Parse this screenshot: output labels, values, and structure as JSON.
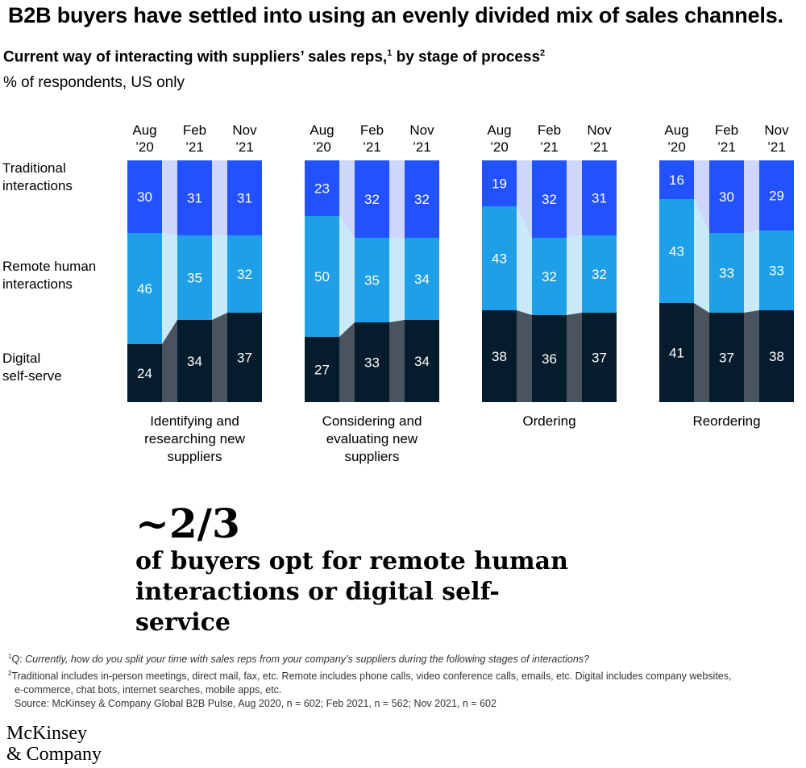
{
  "header": {
    "title": "B2B buyers have settled into using an evenly divided mix of sales channels.",
    "subtitle": "Current way of interacting with suppliers’ sales reps,",
    "subtitle_note1": "1",
    "subtitle_mid": " by stage of process",
    "subtitle_note2": "2",
    "unit": "% of respondents, US only"
  },
  "chart_data": {
    "type": "bar",
    "stacked": true,
    "periods": [
      "Aug ’20",
      "Feb ’21",
      "Nov ’21"
    ],
    "period_labels": [
      [
        "Aug",
        "’20"
      ],
      [
        "Feb",
        "’21"
      ],
      [
        "Nov",
        "’21"
      ]
    ],
    "row_labels": [
      [
        "Traditional",
        "interactions"
      ],
      [
        "Remote human",
        "interactions"
      ],
      [
        "Digital",
        "self-serve"
      ]
    ],
    "series_names": [
      "Traditional interactions",
      "Remote human interactions",
      "Digital self-serve"
    ],
    "colors": {
      "traditional": "#2251ff",
      "remote": "#1f9fe8",
      "digital": "#051c2c",
      "traditional_link": "#cdd7fb",
      "remote_link": "#c8eaf8",
      "digital_link": "#4a545e"
    },
    "groups": [
      {
        "label": [
          "Identifying and",
          "researching new",
          "suppliers"
        ],
        "traditional": [
          30,
          31,
          31
        ],
        "remote": [
          46,
          35,
          32
        ],
        "digital": [
          24,
          34,
          37
        ]
      },
      {
        "label": [
          "Considering and",
          "evaluating new",
          "suppliers"
        ],
        "traditional": [
          23,
          32,
          32
        ],
        "remote": [
          50,
          35,
          34
        ],
        "digital": [
          27,
          33,
          34
        ]
      },
      {
        "label": [
          "Ordering"
        ],
        "traditional": [
          19,
          32,
          31
        ],
        "remote": [
          43,
          32,
          32
        ],
        "digital": [
          38,
          36,
          37
        ]
      },
      {
        "label": [
          "Reordering"
        ],
        "traditional": [
          16,
          30,
          29
        ],
        "remote": [
          43,
          33,
          33
        ],
        "digital": [
          41,
          37,
          38
        ]
      }
    ],
    "ylim": [
      0,
      100
    ]
  },
  "callout": {
    "big": "~2/3",
    "text": "of buyers opt for remote human interactions or digital self-service"
  },
  "footnotes": {
    "n1_mark": "1",
    "n1_prefix": "Q: ",
    "n1_text": "Currently, how do you split your time with sales reps from your company’s suppliers during the following stages of interactions?",
    "n2_mark": "2",
    "n2_text": "Traditional includes in-person meetings, direct mail, fax, etc. Remote includes phone calls, video conference calls, emails, etc. Digital includes company websites,",
    "n2_cont": "e-commerce, chat bots, internet searches, mobile apps, etc.",
    "source": "Source: McKinsey & Company Global B2B Pulse, Aug 2020, n = 602; Feb 2021, n = 562; Nov 2021, n = 602"
  },
  "logo": {
    "line1": "McKinsey",
    "line2": "& Company"
  }
}
